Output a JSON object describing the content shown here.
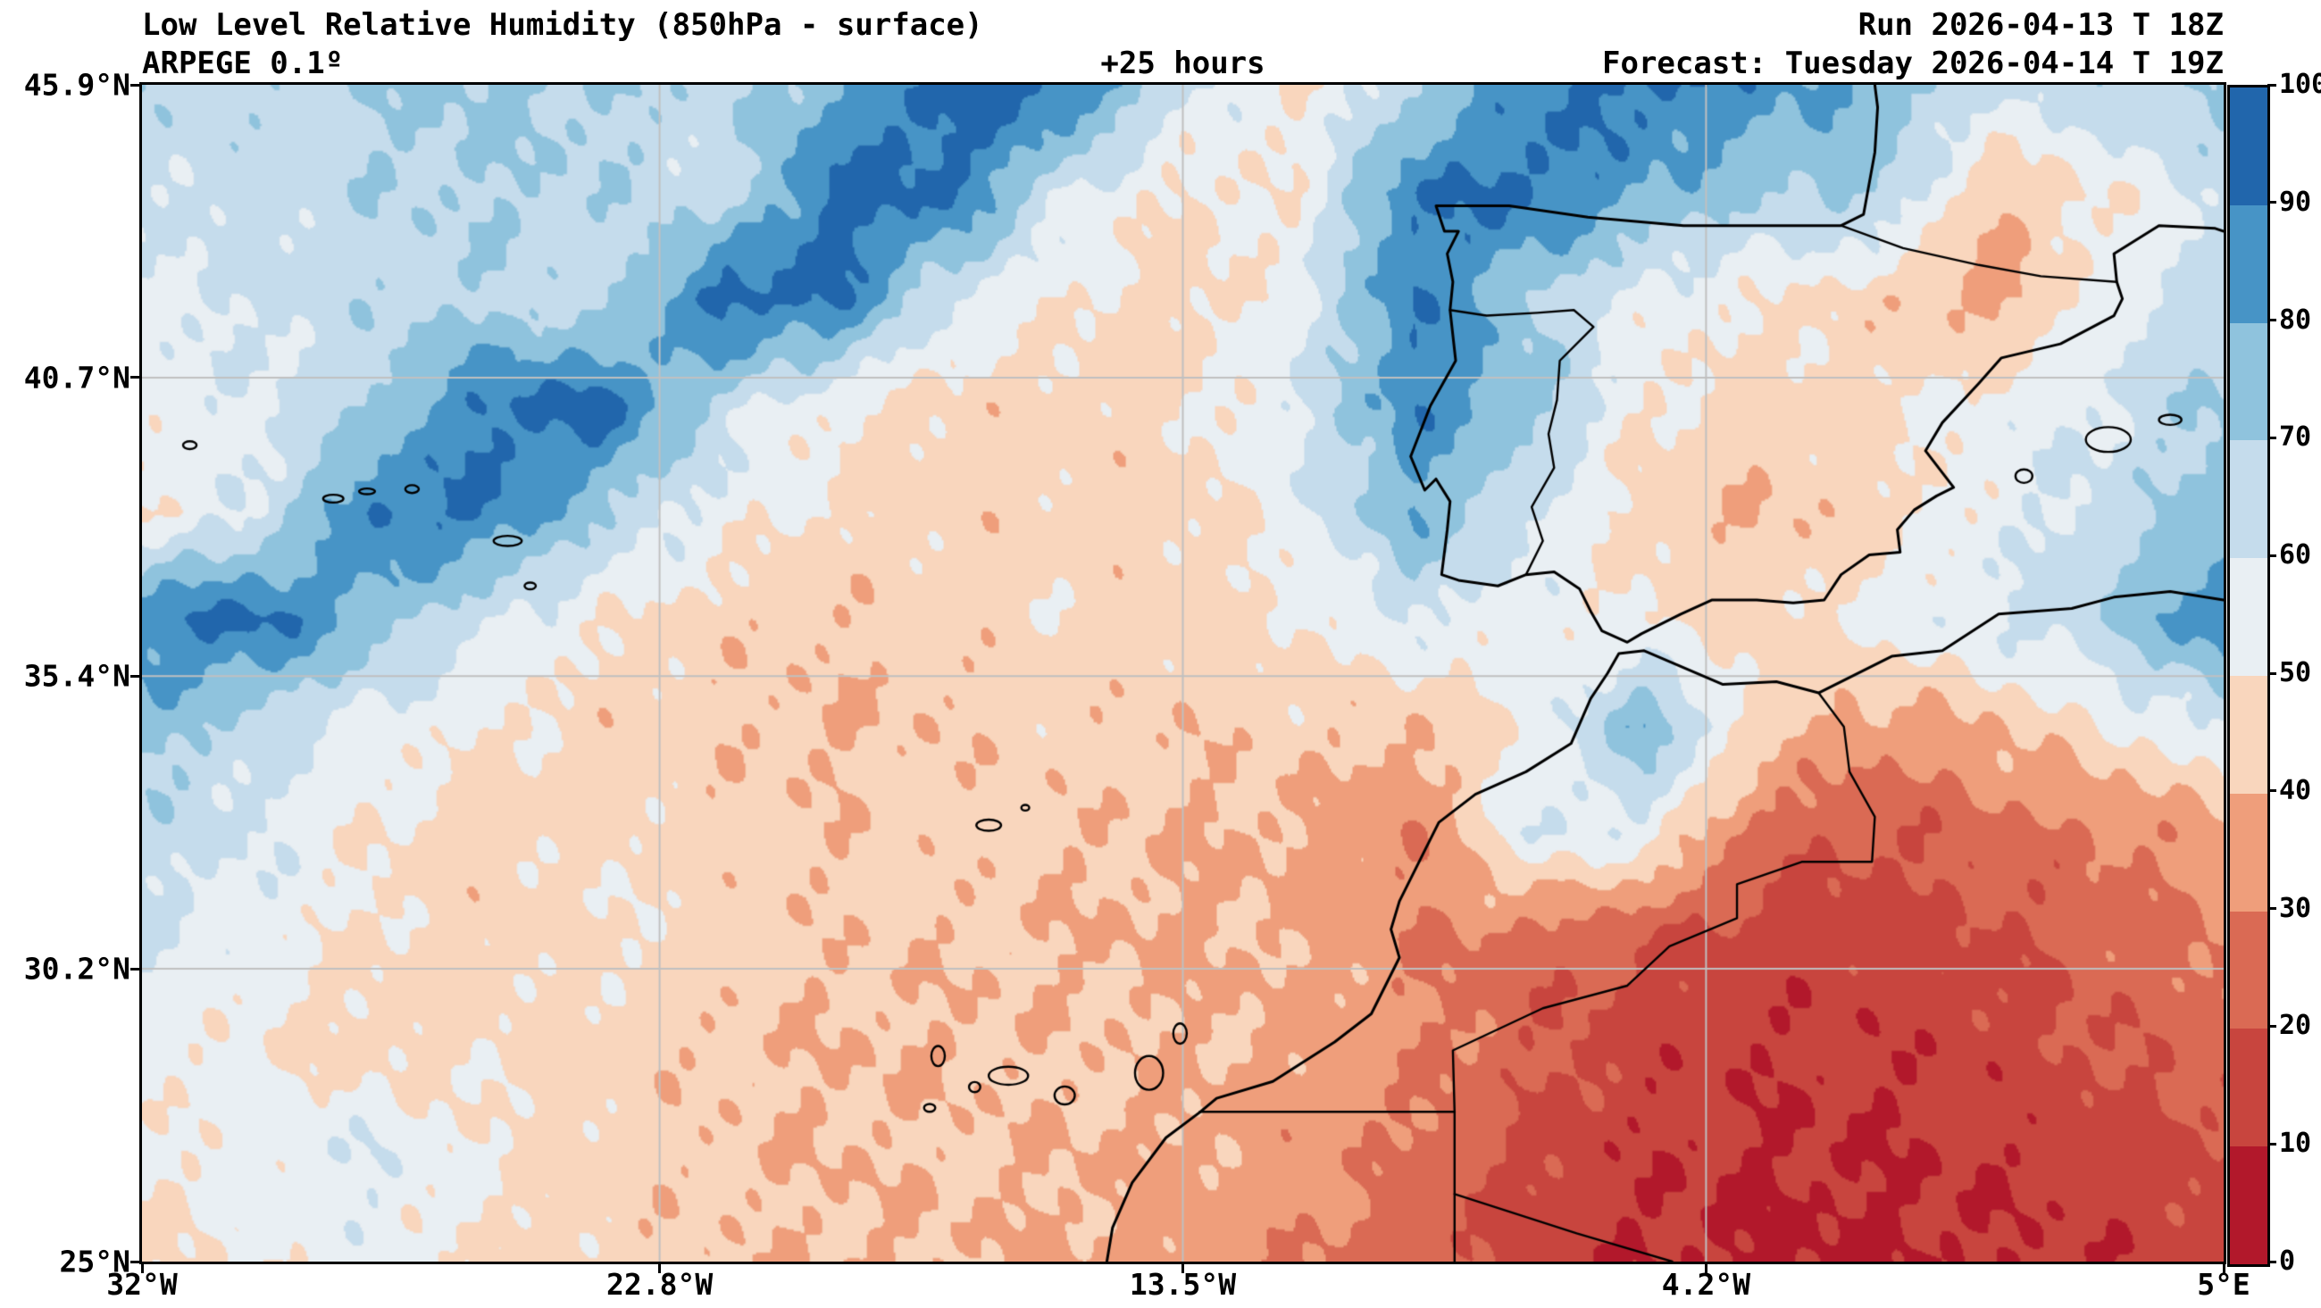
{
  "header": {
    "title": "Low Level Relative Humidity (850hPa - surface)",
    "model": "ARPEGE 0.1º",
    "lead_time": "+25 hours",
    "run": "Run 2026-04-13 T 18Z",
    "forecast": "Forecast: Tuesday 2026-04-14 T 19Z"
  },
  "axes": {
    "lon_range": [
      -32,
      5
    ],
    "lat_range": [
      25,
      45.9
    ],
    "x_ticks": [
      {
        "label": "32°W",
        "lon": -32
      },
      {
        "label": "22.8°W",
        "lon": -22.8
      },
      {
        "label": "13.5°W",
        "lon": -13.5
      },
      {
        "label": "4.2°W",
        "lon": -4.2
      },
      {
        "label": "5°E",
        "lon": 5
      }
    ],
    "y_ticks": [
      {
        "label": "45.9°N",
        "lat": 45.9
      },
      {
        "label": "40.7°N",
        "lat": 40.7
      },
      {
        "label": "35.4°N",
        "lat": 35.4
      },
      {
        "label": "30.2°N",
        "lat": 30.2
      },
      {
        "label": "25°N",
        "lat": 25
      }
    ],
    "gridline_color": "#c0c0c0"
  },
  "colorbar": {
    "min": 0,
    "max": 100,
    "ticks": [
      0,
      10,
      20,
      30,
      40,
      50,
      60,
      70,
      80,
      90,
      100
    ],
    "band_colors_low_to_high": [
      "#b2182b",
      "#c8453e",
      "#da6a54",
      "#ef9e7b",
      "#f9d6bd",
      "#e9eff3",
      "#c5dcec",
      "#8fc3dd",
      "#4794c6",
      "#2166ac"
    ]
  },
  "chart_data": {
    "type": "heatmap",
    "title": "Low Level Relative Humidity (850hPa - surface)",
    "units": "%",
    "levels": [
      0,
      10,
      20,
      30,
      40,
      50,
      60,
      70,
      80,
      90,
      100
    ],
    "x_lon": [
      -32,
      -29.94,
      -27.89,
      -25.83,
      -23.78,
      -21.72,
      -19.67,
      -17.61,
      -15.56,
      -13.5,
      -11.44,
      -9.39,
      -7.33,
      -5.28,
      -3.22,
      -1.17,
      0.89,
      2.94,
      5
    ],
    "y_lat": [
      45.9,
      44.0,
      42.1,
      40.2,
      38.3,
      36.4,
      34.5,
      32.6,
      30.7,
      28.8,
      26.9,
      25.0
    ],
    "values_percent_rh": [
      [
        68,
        66,
        70,
        72,
        70,
        66,
        78,
        95,
        92,
        62,
        50,
        68,
        88,
        93,
        85,
        78,
        62,
        68,
        72
      ],
      [
        62,
        64,
        68,
        70,
        68,
        62,
        95,
        92,
        60,
        48,
        52,
        90,
        93,
        80,
        70,
        72,
        40,
        50,
        62
      ],
      [
        58,
        62,
        66,
        68,
        64,
        95,
        92,
        60,
        50,
        45,
        55,
        90,
        70,
        55,
        50,
        45,
        35,
        55,
        65
      ],
      [
        55,
        58,
        70,
        92,
        95,
        65,
        50,
        45,
        45,
        48,
        60,
        88,
        75,
        50,
        45,
        48,
        55,
        60,
        72
      ],
      [
        50,
        60,
        92,
        90,
        70,
        55,
        48,
        45,
        45,
        45,
        55,
        80,
        60,
        45,
        40,
        45,
        55,
        65,
        75
      ],
      [
        88,
        95,
        75,
        60,
        50,
        45,
        42,
        45,
        48,
        45,
        50,
        60,
        55,
        50,
        45,
        55,
        60,
        70,
        90
      ],
      [
        75,
        65,
        55,
        50,
        45,
        42,
        40,
        42,
        45,
        42,
        45,
        40,
        50,
        80,
        45,
        35,
        40,
        50,
        60
      ],
      [
        65,
        60,
        50,
        45,
        48,
        45,
        42,
        45,
        42,
        40,
        38,
        30,
        60,
        55,
        25,
        20,
        25,
        30,
        35
      ],
      [
        60,
        55,
        48,
        45,
        50,
        45,
        42,
        42,
        40,
        38,
        40,
        30,
        25,
        20,
        15,
        15,
        18,
        25,
        30
      ],
      [
        55,
        50,
        45,
        48,
        45,
        42,
        40,
        40,
        42,
        40,
        38,
        32,
        22,
        15,
        12,
        12,
        15,
        20,
        25
      ],
      [
        50,
        55,
        60,
        50,
        45,
        42,
        40,
        42,
        40,
        38,
        35,
        28,
        18,
        12,
        10,
        10,
        12,
        15,
        18
      ],
      [
        48,
        52,
        55,
        48,
        45,
        42,
        40,
        40,
        38,
        35,
        30,
        22,
        15,
        10,
        8,
        8,
        10,
        12,
        15
      ]
    ]
  },
  "map": {
    "coastlines": [
      [
        [
          -1.2,
          45.9
        ],
        [
          -1.15,
          45.5
        ],
        [
          -1.2,
          44.7
        ],
        [
          -1.4,
          43.6
        ],
        [
          -1.8,
          43.4
        ],
        [
          -2.9,
          43.4
        ],
        [
          -4.6,
          43.4
        ],
        [
          -6.3,
          43.55
        ],
        [
          -7.7,
          43.75
        ],
        [
          -9.0,
          43.75
        ],
        [
          -8.85,
          43.3
        ],
        [
          -8.6,
          43.3
        ],
        [
          -8.8,
          42.9
        ],
        [
          -8.7,
          42.4
        ],
        [
          -8.75,
          41.9
        ],
        [
          -8.65,
          41.0
        ],
        [
          -9.1,
          40.2
        ],
        [
          -9.45,
          39.3
        ],
        [
          -9.2,
          38.7
        ],
        [
          -9.0,
          38.9
        ],
        [
          -8.75,
          38.5
        ],
        [
          -8.8,
          38.0
        ],
        [
          -8.9,
          37.2
        ],
        [
          -8.6,
          37.1
        ],
        [
          -7.9,
          37.0
        ],
        [
          -7.4,
          37.2
        ],
        [
          -6.9,
          37.25
        ],
        [
          -6.45,
          36.95
        ],
        [
          -6.25,
          36.55
        ],
        [
          -6.05,
          36.2
        ],
        [
          -5.6,
          36.0
        ],
        [
          -5.35,
          36.15
        ],
        [
          -4.65,
          36.5
        ],
        [
          -4.1,
          36.75
        ],
        [
          -3.3,
          36.75
        ],
        [
          -2.65,
          36.7
        ],
        [
          -2.1,
          36.75
        ],
        [
          -1.8,
          37.2
        ],
        [
          -1.3,
          37.55
        ],
        [
          -0.75,
          37.6
        ],
        [
          -0.8,
          38.0
        ],
        [
          -0.5,
          38.35
        ],
        [
          -0.1,
          38.6
        ],
        [
          0.2,
          38.75
        ],
        [
          -0.3,
          39.4
        ],
        [
          0.0,
          39.9
        ],
        [
          0.65,
          40.6
        ],
        [
          1.05,
          41.05
        ],
        [
          2.1,
          41.3
        ],
        [
          3.05,
          41.8
        ],
        [
          3.2,
          42.1
        ],
        [
          3.1,
          42.4
        ],
        [
          3.05,
          42.9
        ],
        [
          3.85,
          43.4
        ],
        [
          4.85,
          43.35
        ],
        [
          5.0,
          43.3
        ]
      ],
      [
        [
          5.0,
          36.75
        ],
        [
          4.05,
          36.9
        ],
        [
          3.05,
          36.8
        ],
        [
          2.3,
          36.6
        ],
        [
          1.0,
          36.5
        ],
        [
          0.0,
          35.85
        ],
        [
          -0.9,
          35.75
        ],
        [
          -2.2,
          35.1
        ],
        [
          -2.95,
          35.3
        ],
        [
          -3.9,
          35.25
        ],
        [
          -5.3,
          35.85
        ],
        [
          -5.75,
          35.8
        ],
        [
          -5.95,
          35.45
        ],
        [
          -6.25,
          35.0
        ],
        [
          -6.6,
          34.2
        ],
        [
          -7.4,
          33.7
        ],
        [
          -8.3,
          33.3
        ],
        [
          -8.95,
          32.8
        ],
        [
          -9.25,
          32.2
        ],
        [
          -9.65,
          31.4
        ],
        [
          -9.8,
          30.9
        ],
        [
          -9.65,
          30.4
        ],
        [
          -10.15,
          29.4
        ],
        [
          -10.8,
          28.9
        ],
        [
          -11.9,
          28.2
        ],
        [
          -12.9,
          27.9
        ],
        [
          -13.2,
          27.65
        ],
        [
          -13.8,
          27.2
        ],
        [
          -14.4,
          26.4
        ],
        [
          -14.75,
          25.6
        ],
        [
          -14.85,
          25.0
        ]
      ]
    ],
    "borders": [
      [
        [
          -1.8,
          43.4
        ],
        [
          -0.7,
          43.0
        ],
        [
          0.65,
          42.7
        ],
        [
          1.75,
          42.5
        ],
        [
          3.1,
          42.4
        ]
      ],
      [
        [
          -8.75,
          41.9
        ],
        [
          -8.1,
          41.8
        ],
        [
          -7.2,
          41.85
        ],
        [
          -6.55,
          41.9
        ],
        [
          -6.2,
          41.6
        ],
        [
          -6.8,
          41.0
        ],
        [
          -6.85,
          40.3
        ],
        [
          -7.0,
          39.7
        ],
        [
          -6.9,
          39.1
        ],
        [
          -7.3,
          38.4
        ],
        [
          -7.1,
          37.8
        ],
        [
          -7.4,
          37.2
        ]
      ],
      [
        [
          -2.2,
          35.1
        ],
        [
          -1.75,
          34.5
        ],
        [
          -1.65,
          33.7
        ],
        [
          -1.2,
          32.9
        ],
        [
          -1.25,
          32.1
        ],
        [
          -2.5,
          32.1
        ],
        [
          -3.65,
          31.7
        ],
        [
          -3.65,
          31.1
        ],
        [
          -4.85,
          30.6
        ],
        [
          -5.6,
          29.9
        ],
        [
          -7.1,
          29.5
        ],
        [
          -8.7,
          28.75
        ],
        [
          -8.67,
          27.66
        ]
      ],
      [
        [
          -13.2,
          27.66
        ],
        [
          -8.67,
          27.66
        ]
      ],
      [
        [
          -8.67,
          27.66
        ],
        [
          -8.67,
          25.0
        ]
      ],
      [
        [
          -8.67,
          26.2
        ],
        [
          -6.5,
          25.5
        ],
        [
          -4.8,
          25.0
        ]
      ]
    ],
    "islands": [
      [
        -31.15,
        39.5,
        0.12,
        0.07
      ],
      [
        -28.6,
        38.55,
        0.18,
        0.07
      ],
      [
        -28.0,
        38.68,
        0.14,
        0.05
      ],
      [
        -27.2,
        38.72,
        0.12,
        0.07
      ],
      [
        -25.5,
        37.8,
        0.25,
        0.09
      ],
      [
        -25.1,
        37.0,
        0.1,
        0.06
      ],
      [
        -16.95,
        32.75,
        0.22,
        0.1
      ],
      [
        -16.3,
        33.06,
        0.07,
        0.05
      ],
      [
        -17.85,
        28.65,
        0.12,
        0.18
      ],
      [
        -18.0,
        27.73,
        0.1,
        0.07
      ],
      [
        -17.2,
        28.1,
        0.1,
        0.09
      ],
      [
        -16.6,
        28.3,
        0.35,
        0.16
      ],
      [
        -15.6,
        27.95,
        0.18,
        0.16
      ],
      [
        -14.1,
        28.35,
        0.25,
        0.3
      ],
      [
        -13.55,
        29.05,
        0.12,
        0.18
      ],
      [
        1.45,
        38.95,
        0.15,
        0.12
      ],
      [
        2.95,
        39.6,
        0.4,
        0.22
      ],
      [
        4.05,
        39.95,
        0.2,
        0.09
      ]
    ]
  }
}
